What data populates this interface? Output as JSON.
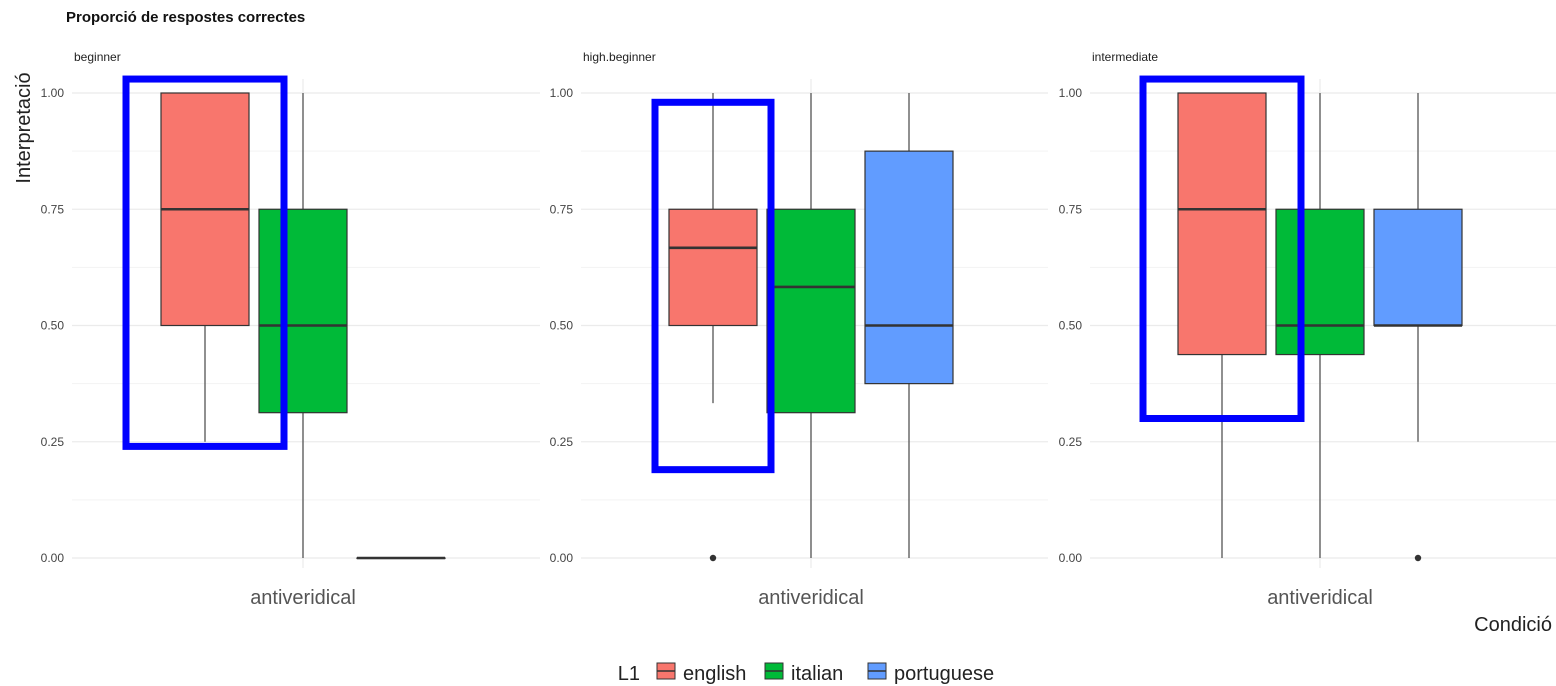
{
  "chart_data": {
    "type": "box",
    "title": "Proporció de respostes correctes",
    "ylabel": "Interpretació",
    "xlabel": "Condició",
    "ylim": [
      0,
      1
    ],
    "yticks": [
      "0.00",
      "0.25",
      "0.50",
      "0.75",
      "1.00"
    ],
    "ytick_values": [
      0,
      0.25,
      0.5,
      0.75,
      1.0
    ],
    "grid": true,
    "legend": {
      "title": "L1",
      "placement": "bottom",
      "entries": [
        "english",
        "italian",
        "portuguese"
      ]
    },
    "colors": {
      "english": "#F8766D",
      "italian": "#00BA38",
      "portuguese": "#619CFF",
      "highlight": "#0000FF"
    },
    "facets": [
      {
        "name": "beginner",
        "category": "antiveridical",
        "series": [
          {
            "name": "english",
            "min": 0.25,
            "q1": 0.5,
            "median": 0.75,
            "q3": 1.0,
            "max": 1.0,
            "outliers": []
          },
          {
            "name": "italian",
            "min": 0.0,
            "q1": 0.3125,
            "median": 0.5,
            "q3": 0.75,
            "max": 1.0,
            "outliers": []
          },
          {
            "name": "portuguese",
            "min": 0.0,
            "q1": 0.0,
            "median": 0.0,
            "q3": 0.0,
            "max": 0.0,
            "outliers": []
          }
        ],
        "highlight": {
          "series": "english",
          "ymin": 0.24,
          "ymax": 1.03
        }
      },
      {
        "name": "high.beginner",
        "category": "antiveridical",
        "series": [
          {
            "name": "english",
            "min": 0.333,
            "q1": 0.5,
            "median": 0.667,
            "q3": 0.75,
            "max": 1.0,
            "outliers": [
              0.0
            ]
          },
          {
            "name": "italian",
            "min": 0.0,
            "q1": 0.3125,
            "median": 0.583,
            "q3": 0.75,
            "max": 1.0,
            "outliers": []
          },
          {
            "name": "portuguese",
            "min": 0.0,
            "q1": 0.375,
            "median": 0.5,
            "q3": 0.875,
            "max": 1.0,
            "outliers": []
          }
        ],
        "highlight": {
          "series": "english",
          "ymin": 0.19,
          "ymax": 0.98
        }
      },
      {
        "name": "intermediate",
        "category": "antiveridical",
        "series": [
          {
            "name": "english",
            "min": 0.0,
            "q1": 0.4375,
            "median": 0.75,
            "q3": 1.0,
            "max": 1.0,
            "outliers": []
          },
          {
            "name": "italian",
            "min": 0.0,
            "q1": 0.4375,
            "median": 0.5,
            "q3": 0.75,
            "max": 1.0,
            "outliers": []
          },
          {
            "name": "portuguese",
            "min": 0.25,
            "q1": 0.5,
            "median": 0.5,
            "q3": 0.75,
            "max": 1.0,
            "outliers": [
              0.0
            ]
          }
        ],
        "highlight": {
          "series": "english",
          "ymin": 0.3,
          "ymax": 1.03
        }
      }
    ]
  }
}
